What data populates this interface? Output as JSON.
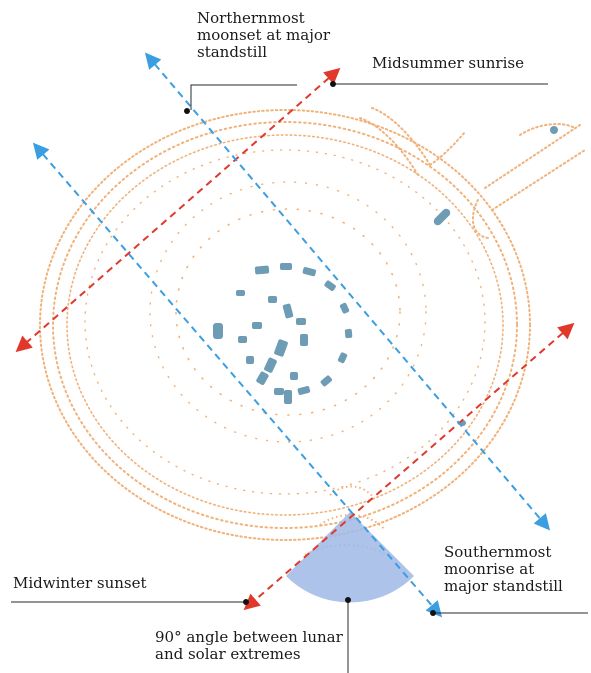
{
  "labels": {
    "northernmost": "Northernmost\nmoonset at major\nstandstill",
    "midsummer": "Midsummer sunrise",
    "southernmost": "Southernmost\nmoonrise at\nmajor standstill",
    "midwinter": "Midwinter sunset",
    "angle": "90° angle between lunar\nand solar extremes"
  },
  "colors": {
    "earthwork": "#f0b27a",
    "stones": "#6e9cb4",
    "solar_line": "#e0392b",
    "lunar_line": "#3a9ee0",
    "angle_wedge": "#9fb9e6"
  }
}
